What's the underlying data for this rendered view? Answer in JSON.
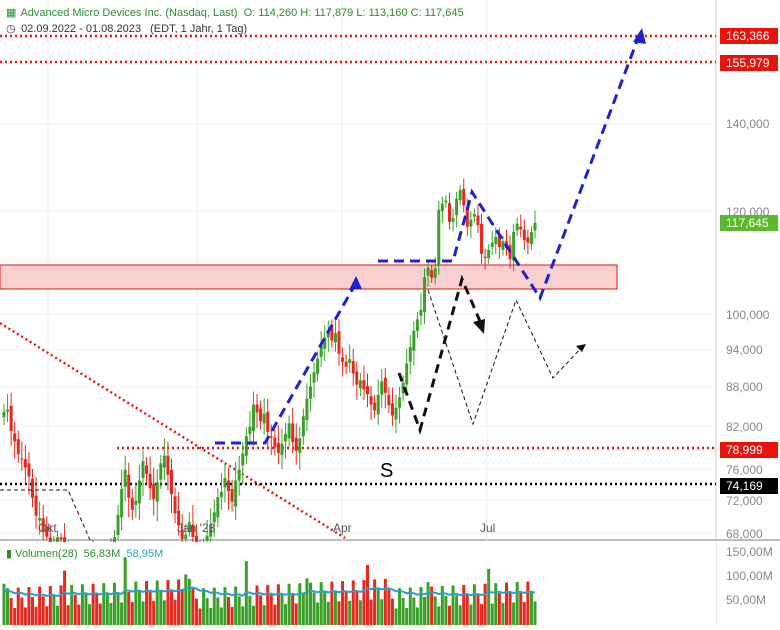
{
  "header": {
    "title": "Advanced Micro Devices Inc. (Nasdaq, Last)",
    "ohlc": "O: 114,260  H: 117,879  L: 113,160  C: 117,645",
    "range": "02.09.2022 - 01.08.2023",
    "interval": "(EDT, 1 Jahr, 1 Tag)",
    "chart-icon": "bar-chart-icon",
    "clock-icon": "clock-icon"
  },
  "chart_data": {
    "type": "candlestick",
    "y_axis": {
      "ticks": [
        "140,000",
        "120,000",
        "100,000",
        "94,000",
        "88,000",
        "82,000",
        "76,000",
        "72,000",
        "68,000"
      ],
      "range": [
        66,
        170
      ]
    },
    "x_axis": {
      "ticks": [
        "Okt",
        "Jan '23",
        "Apr",
        "Jul"
      ]
    },
    "price_tags": [
      {
        "label": "163,366",
        "value": 163.366,
        "color": "#e8140c"
      },
      {
        "label": "155,979",
        "value": 155.979,
        "color": "#e8140c"
      },
      {
        "label": "117,645",
        "value": 117.645,
        "color": "#5cb82e"
      },
      {
        "label": "78,999",
        "value": 78.999,
        "color": "#e8140c"
      },
      {
        "label": "74,169",
        "value": 74.169,
        "color": "#000000"
      }
    ],
    "horizontal_lines": [
      {
        "value": 163.366,
        "color": "#e8140c",
        "style": "dotted"
      },
      {
        "value": 155.979,
        "color": "#e8140c",
        "style": "dotted"
      },
      {
        "value": 78.999,
        "color": "#e8140c",
        "style": "dotted"
      },
      {
        "value": 74.169,
        "color": "#000000",
        "style": "dotted"
      }
    ],
    "zone": {
      "from": 103.5,
      "to": 109,
      "color": "#f8c8c8"
    },
    "annotation_S": "S",
    "candles_close": [
      84.2,
      84.5,
      81.3,
      79.9,
      78.1,
      77.4,
      76.2,
      75.1,
      72.3,
      70.1,
      69.8,
      68.2,
      66.9,
      64.1,
      65.2,
      66.7,
      66.2,
      63.8,
      62.0,
      63.1,
      60.5,
      58.0,
      60.3,
      63.2,
      64.1,
      62.4,
      60.9,
      59.4,
      60.1,
      62.3,
      64.5,
      66.8,
      70.2,
      73.5,
      75.9,
      72.3,
      70.8,
      71.9,
      74.6,
      77.1,
      75.4,
      73.6,
      72.1,
      74.4,
      76.8,
      77.9,
      75.3,
      72.8,
      70.4,
      68.9,
      66.2,
      67.5,
      69.3,
      66.8,
      64.9,
      63.6,
      65.1,
      67.2,
      69.0,
      70.5,
      72.4,
      73.1,
      74.9,
      73.2,
      71.8,
      74.6,
      75.9,
      78.2,
      80.6,
      81.9,
      85.3,
      84.1,
      82.7,
      83.9,
      81.2,
      80.4,
      79.1,
      78.3,
      79.6,
      80.9,
      82.4,
      79.8,
      78.6,
      80.3,
      83.5,
      86.2,
      88.1,
      90.4,
      92.6,
      94.8,
      96.1,
      97.3,
      95.6,
      96.8,
      93.4,
      92.1,
      91.3,
      92.5,
      90.2,
      88.4,
      89.1,
      87.6,
      86.9,
      85.3,
      84.4,
      86.8,
      88.9,
      87.1,
      85.2,
      83.6,
      84.8,
      86.4,
      88.7,
      91.8,
      94.5,
      97.2,
      99.1,
      100.6,
      106.2,
      108.4,
      106.1,
      108.2,
      120.3,
      121.7,
      122.4,
      117.9,
      118.6,
      122.8,
      124.8,
      121.3,
      116.9,
      118.3,
      119.4,
      117.2,
      111.3,
      110.4,
      112.1,
      113.6,
      114.8,
      112.7,
      113.9,
      112.5,
      110.2,
      115.8,
      117.5,
      116.3,
      114.1,
      113.6,
      115.8,
      117.645
    ],
    "volume_legend": {
      "label": "Volumen(28)",
      "value1": "56,83M",
      "value2": "58,95M"
    },
    "volume_ticks": [
      "150,00M",
      "100,00M",
      "50,00M"
    ]
  }
}
